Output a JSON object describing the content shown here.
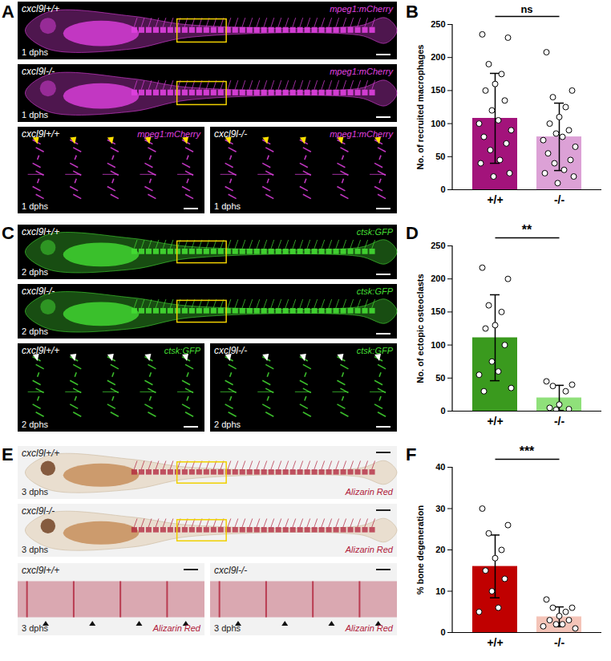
{
  "image_panels": [
    {
      "letter": "A",
      "background": "#000000",
      "color": "#e040e0",
      "arrow_color": "#ffe000",
      "images": [
        {
          "genotype": "cxcl9l+/+",
          "reporter": "mpeg1:mCherry",
          "stage": "1 dphs"
        },
        {
          "genotype": "cxcl9l-/-",
          "reporter": "mpeg1:mCherry",
          "stage": "1 dphs"
        },
        {
          "genotype": "cxcl9l+/+",
          "reporter": "mpeg1:mCherry",
          "stage": "1 dphs"
        },
        {
          "genotype": "cxcl9l-/-",
          "reporter": "mpeg1:mCherry",
          "stage": "1 dphs"
        }
      ]
    },
    {
      "letter": "C",
      "background": "#000000",
      "color": "#44dd33",
      "arrow_color": "#ffffff",
      "images": [
        {
          "genotype": "cxcl9l+/+",
          "reporter": "ctsk:GFP",
          "stage": "2 dphs"
        },
        {
          "genotype": "cxcl9l-/-",
          "reporter": "ctsk:GFP",
          "stage": "2 dphs"
        },
        {
          "genotype": "cxcl9l+/+",
          "reporter": "ctsk:GFP",
          "stage": "2 dphs"
        },
        {
          "genotype": "cxcl9l-/-",
          "reporter": "ctsk:GFP",
          "stage": "2 dphs"
        }
      ]
    },
    {
      "letter": "E",
      "background": "#f2f2f2",
      "color": "#b0203a",
      "arrow_color": "#111111",
      "images": [
        {
          "genotype": "cxcl9l+/+",
          "reporter": "Alizarin Red",
          "stage": "3 dphs"
        },
        {
          "genotype": "cxcl9l-/-",
          "reporter": "Alizarin Red",
          "stage": "3 dphs"
        },
        {
          "genotype": "cxcl9l+/+",
          "reporter": "Alizarin Red",
          "stage": "3 dphs"
        },
        {
          "genotype": "cxcl9l-/-",
          "reporter": "Alizarin Red",
          "stage": "3 dphs"
        }
      ]
    }
  ],
  "chart_data": [
    {
      "panel": "B",
      "type": "bar",
      "categories": [
        "+/+",
        "-/-"
      ],
      "values": [
        108,
        80
      ],
      "errors": [
        68,
        51
      ],
      "points": [
        [
          235,
          230,
          190,
          175,
          160,
          150,
          135,
          120,
          105,
          100,
          90,
          80,
          70,
          60,
          45,
          40,
          25,
          20
        ],
        [
          208,
          150,
          140,
          125,
          110,
          100,
          90,
          85,
          80,
          75,
          65,
          55,
          45,
          40,
          30,
          25,
          20,
          10
        ]
      ],
      "colors": [
        "#a3137b",
        "#dca1d6"
      ],
      "y_label": "No. of recruited macrophages",
      "ylim": [
        0,
        250
      ],
      "yticks": [
        0,
        50,
        100,
        150,
        200,
        250
      ],
      "annotation": "ns"
    },
    {
      "panel": "D",
      "type": "bar",
      "categories": [
        "+/+",
        "-/-"
      ],
      "values": [
        111,
        20
      ],
      "errors": [
        65,
        19
      ],
      "points": [
        [
          217,
          200,
          160,
          150,
          130,
          125,
          100,
          75,
          60,
          55,
          35,
          30
        ],
        [
          45,
          40,
          38,
          30,
          10,
          5,
          3,
          2
        ]
      ],
      "colors": [
        "#3a9a1e",
        "#8fe07a"
      ],
      "y_label": "No. of ectopic osteoclasts",
      "ylim": [
        0,
        250
      ],
      "yticks": [
        0,
        50,
        100,
        150,
        200,
        250
      ],
      "annotation": "**"
    },
    {
      "panel": "F",
      "type": "bar",
      "categories": [
        "+/+",
        "-/-"
      ],
      "values": [
        16,
        3.8
      ],
      "errors": [
        7.6,
        2.4
      ],
      "points": [
        [
          30,
          26,
          24,
          20,
          18,
          15,
          13,
          10,
          6,
          5
        ],
        [
          8,
          6,
          6,
          5,
          4,
          3,
          3,
          2,
          2,
          1.5,
          1
        ]
      ],
      "colors": [
        "#c00000",
        "#f4c4b8"
      ],
      "y_label": "% bone degeneration",
      "ylim": [
        0,
        40
      ],
      "yticks": [
        0,
        10,
        20,
        30,
        40
      ],
      "annotation": "***"
    }
  ]
}
